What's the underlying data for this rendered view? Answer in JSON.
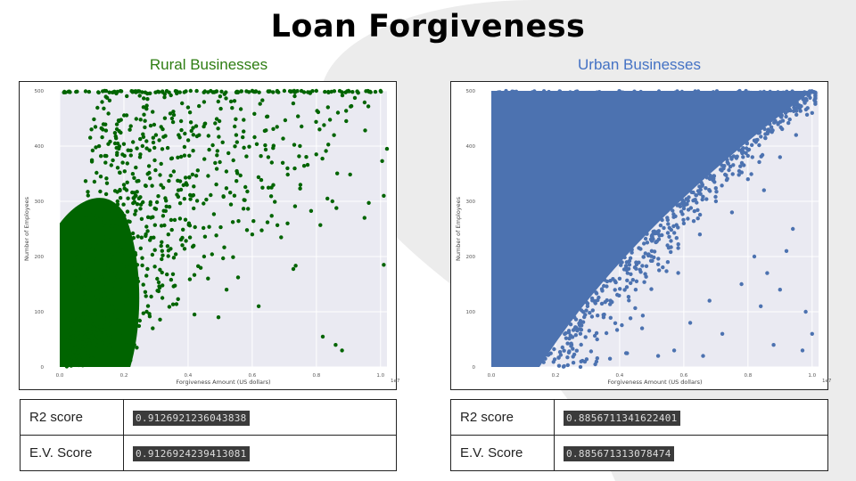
{
  "page": {
    "title": "Loan Forgiveness",
    "colors": {
      "background_shape": "#ececec",
      "rural": "#006400",
      "urban": "#4c72b0",
      "plot_bg": "#eaeaf2"
    }
  },
  "chart_data": [
    {
      "type": "scatter",
      "heading": "Rural Businesses",
      "color": "#006400",
      "xlabel": "Forgiveness Amount (US dollars)",
      "ylabel": "Number of Employees",
      "x_multiplier": "1e7",
      "x_ticks": [
        "0.0",
        "0.2",
        "0.4",
        "0.6",
        "0.8",
        "1.0"
      ],
      "y_ticks": [
        "0",
        "100",
        "200",
        "300",
        "400",
        "500"
      ],
      "xlim": [
        0,
        1.02
      ],
      "ylim": [
        0,
        500
      ],
      "grid": true,
      "sample_points": {
        "x": [
          0.05,
          0.08,
          0.1,
          0.12,
          0.15,
          0.18,
          0.2,
          0.25,
          0.3,
          0.35,
          0.4,
          0.45,
          0.5,
          0.6,
          0.7,
          0.8,
          0.9,
          1.0,
          0.55,
          0.65,
          0.75,
          0.85,
          0.95,
          1.01,
          1.01,
          1.02,
          0.86,
          0.88,
          0.82,
          0.62,
          0.52,
          0.42,
          0.32,
          0.29,
          0.24,
          0.22,
          0.6,
          0.71,
          0.45,
          0.37
        ],
        "y": [
          100,
          150,
          200,
          220,
          260,
          300,
          330,
          380,
          420,
          450,
          470,
          480,
          490,
          500,
          500,
          500,
          500,
          500,
          420,
          380,
          330,
          300,
          270,
          310,
          185,
          395,
          40,
          30,
          55,
          110,
          140,
          95,
          125,
          70,
          35,
          12,
          240,
          260,
          200,
          320
        ]
      }
    },
    {
      "type": "scatter",
      "heading": "Urban Businesses",
      "color": "#4c72b0",
      "xlabel": "Forgiveness Amount (US dollars)",
      "ylabel": "Number of Employees",
      "x_multiplier": "1e7",
      "x_ticks": [
        "0.0",
        "0.2",
        "0.4",
        "0.6",
        "0.8",
        "1.0"
      ],
      "y_ticks": [
        "0",
        "100",
        "200",
        "300",
        "400",
        "500"
      ],
      "xlim": [
        0,
        1.02
      ],
      "ylim": [
        0,
        500
      ],
      "grid": true,
      "sample_points": {
        "x": [
          0.2,
          0.25,
          0.3,
          0.35,
          0.4,
          0.45,
          0.5,
          0.55,
          0.6,
          0.65,
          0.7,
          0.75,
          0.8,
          0.85,
          0.9,
          0.95,
          1.0,
          1.01,
          0.62,
          0.68,
          0.72,
          0.78,
          0.84,
          0.88,
          0.92,
          0.97,
          0.57,
          0.52,
          0.47,
          0.42,
          0.37,
          0.33,
          0.28,
          0.82,
          0.86,
          0.9,
          0.94,
          0.98,
          1.0,
          0.66
        ],
        "y": [
          60,
          40,
          110,
          90,
          160,
          140,
          210,
          190,
          260,
          240,
          300,
          280,
          340,
          320,
          380,
          420,
          460,
          480,
          80,
          120,
          60,
          150,
          110,
          40,
          210,
          30,
          30,
          20,
          70,
          25,
          15,
          50,
          10,
          200,
          170,
          140,
          250,
          100,
          60,
          20
        ]
      }
    }
  ],
  "rural": {
    "heading": "Rural Businesses",
    "scores": [
      {
        "label": "R2 score",
        "value": "0.9126921236043838"
      },
      {
        "label": "E.V. Score",
        "value": "0.9126924239413081"
      }
    ]
  },
  "urban": {
    "heading": "Urban Businesses",
    "scores": [
      {
        "label": "R2 score",
        "value": "0.8856711341622401"
      },
      {
        "label": "E.V. Score",
        "value": "0.885671313078474"
      }
    ]
  }
}
